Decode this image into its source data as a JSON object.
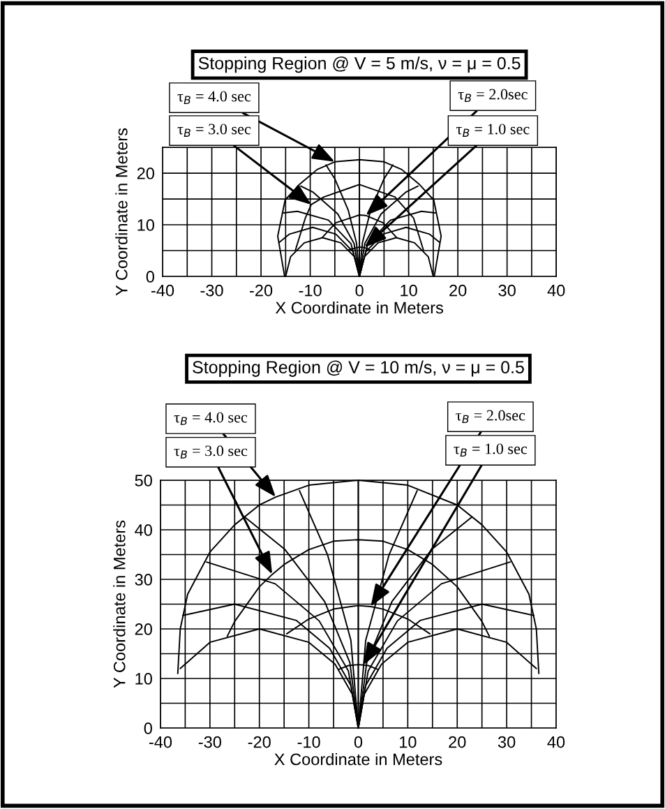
{
  "chart_data": [
    {
      "type": "line",
      "title": "Stopping Region @ V = 5 m/s, ν = μ = 0.5",
      "xlabel": "X Coordinate in Meters",
      "ylabel": "Y Coordinate in Meters",
      "xlim": [
        -40,
        40
      ],
      "ylim": [
        0,
        25
      ],
      "xticks": [
        -40,
        {
          "value": -35,
          "label": null
        },
        -30,
        {
          "value": -25,
          "label": null
        },
        -20,
        {
          "value": -15,
          "label": null
        },
        -10,
        {
          "value": -5,
          "label": null
        },
        0,
        {
          "value": 5,
          "label": null
        },
        10,
        {
          "value": 15,
          "label": null
        },
        20,
        {
          "value": 25,
          "label": null
        },
        30,
        {
          "value": 35,
          "label": null
        },
        40
      ],
      "yticks": [
        0,
        {
          "value": 5,
          "label": null
        },
        10,
        {
          "value": 15,
          "label": null
        },
        20,
        {
          "value": 25,
          "label": null
        }
      ],
      "grid": true,
      "annotations": [
        {
          "text": "τ$_{B}$ = 4.0 sec",
          "x": -5,
          "y": 22.2
        },
        {
          "text": "τ$_{B}$ = 3.0 sec",
          "x": -9.8,
          "y": 13.9
        },
        {
          "text": "τ$_{B}$ = 2.0sec",
          "x": 1.3,
          "y": 11.8
        },
        {
          "text": "τ$_{B}$ = 1.0 sec",
          "x": 1.0,
          "y": 5.6
        }
      ],
      "series": [
        {
          "color": "#000000",
          "x": [
            -15.2,
            -16.6,
            -15.1,
            -12.2,
            -8.6,
            -5,
            0,
            5,
            8.6,
            12.2,
            15.1,
            16.6,
            15.2
          ],
          "values": [
            0,
            7.8,
            14.8,
            17.8,
            20.7,
            22.2,
            22.6,
            22.2,
            20.7,
            17.8,
            14.8,
            7.8,
            0
          ]
        },
        {
          "color": "#000000",
          "x": [
            -13,
            -11,
            -9.8,
            -7.2,
            0,
            7.2,
            11,
            13
          ],
          "values": [
            5.1,
            11.3,
            13.9,
            15.4,
            17.8,
            15.4,
            11.3,
            5.1
          ]
        },
        {
          "color": "#000000",
          "x": [
            -7.5,
            -4.8,
            0,
            1.3,
            4.8,
            7.5
          ],
          "values": [
            7.6,
            10.4,
            11.9,
            11.8,
            10.4,
            7.6
          ]
        },
        {
          "color": "#000000",
          "x": [
            -2.3,
            0,
            1.0,
            2.3
          ],
          "values": [
            5.1,
            5.7,
            5.6,
            5.1
          ]
        },
        {
          "color": "#000000",
          "x": [
            0,
            -1.0,
            -3.8,
            -7.5,
            -11.2,
            -14,
            -15
          ],
          "values": [
            0,
            3.8,
            6.5,
            7.5,
            6.5,
            3.8,
            0
          ]
        },
        {
          "color": "#000000",
          "x": [
            0,
            -1.3,
            -4.8,
            -9.5,
            -14.2,
            -16.3
          ],
          "values": [
            0,
            4.8,
            8.2,
            9.5,
            8.2,
            6.6
          ]
        },
        {
          "color": "#000000",
          "x": [
            0,
            -1.7,
            -6.3,
            -12.6,
            -15.4
          ],
          "values": [
            0,
            6.3,
            10.9,
            12.6,
            12.3
          ]
        },
        {
          "color": "#000000",
          "x": [
            0,
            -1.1,
            -4.4,
            -9.4,
            -11.9
          ],
          "values": [
            0,
            6.4,
            12.1,
            16.3,
            17.5
          ]
        },
        {
          "color": "#000000",
          "x": [
            0,
            -0.6,
            -2.3,
            -5.0,
            -6.8
          ],
          "values": [
            0,
            6.5,
            12.9,
            18.9,
            21.6
          ]
        },
        {
          "color": "#000000",
          "x": [
            0,
            0
          ],
          "values": [
            0,
            22.6
          ]
        },
        {
          "color": "#000000",
          "x": [
            0,
            0.6,
            2.3,
            5.0,
            6.8
          ],
          "values": [
            0,
            6.5,
            12.9,
            18.9,
            21.6
          ]
        },
        {
          "color": "#000000",
          "x": [
            0,
            1.1,
            4.4,
            9.4,
            11.9
          ],
          "values": [
            0,
            6.4,
            12.1,
            16.3,
            17.5
          ]
        },
        {
          "color": "#000000",
          "x": [
            0,
            1.7,
            6.3,
            12.6,
            15.4
          ],
          "values": [
            0,
            6.3,
            10.9,
            12.6,
            12.3
          ]
        },
        {
          "color": "#000000",
          "x": [
            0,
            1.3,
            4.8,
            9.5,
            14.2,
            16.3
          ],
          "values": [
            0,
            4.8,
            8.2,
            9.5,
            8.2,
            6.6
          ]
        },
        {
          "color": "#000000",
          "x": [
            0,
            1.0,
            3.8,
            7.5,
            11.2,
            14,
            15
          ],
          "values": [
            0,
            3.8,
            6.5,
            7.5,
            6.5,
            3.8,
            0
          ]
        }
      ]
    },
    {
      "type": "line",
      "title": "Stopping Region @ V = 10 m/s, ν = μ = 0.5",
      "xlabel": "X Coordinate in Meters",
      "ylabel": "Y Coordinate in Meters",
      "xlim": [
        -40,
        40
      ],
      "ylim": [
        0,
        50
      ],
      "xticks": [
        -40,
        {
          "value": -35,
          "label": null
        },
        -30,
        {
          "value": -25,
          "label": null
        },
        -20,
        {
          "value": -15,
          "label": null
        },
        -10,
        {
          "value": -5,
          "label": null
        },
        0,
        {
          "value": 5,
          "label": null
        },
        10,
        {
          "value": 15,
          "label": null
        },
        20,
        {
          "value": 25,
          "label": null
        },
        30,
        {
          "value": 35,
          "label": null
        },
        40
      ],
      "yticks": [
        0,
        {
          "value": 5,
          "label": null
        },
        10,
        {
          "value": 15,
          "label": null
        },
        20,
        {
          "value": 25,
          "label": null
        },
        30,
        {
          "value": 35,
          "label": null
        },
        40,
        {
          "value": 45,
          "label": null
        },
        50
      ],
      "grid": true,
      "annotations": [
        {
          "text": "τ$_{B}$ = 4.0 sec",
          "x": -16.7,
          "y": 46.6
        },
        {
          "text": "τ$_{B}$ = 3.0 sec",
          "x": -17.4,
          "y": 31
        },
        {
          "text": "τ$_{B}$ = 2.0sec",
          "x": 2.5,
          "y": 24.5
        },
        {
          "text": "τ$_{B}$ = 1.0 sec",
          "x": 1.0,
          "y": 12.7
        }
      ],
      "series": [
        {
          "color": "#000000",
          "x": [
            -36.5,
            -36,
            -34.5,
            -30,
            -25,
            -20,
            -16.7,
            -10,
            0,
            10,
            20,
            25,
            30,
            34.5,
            36,
            36.5
          ],
          "values": [
            11,
            20,
            27,
            35.5,
            41,
            45,
            46.6,
            49,
            50,
            49,
            45,
            41,
            35.5,
            27,
            20,
            11
          ]
        },
        {
          "color": "#000000",
          "x": [
            -26.5,
            -25,
            -20,
            -17.4,
            -15,
            -10,
            -5,
            0,
            5,
            10,
            15,
            20,
            25,
            26.5
          ],
          "values": [
            18.5,
            21.5,
            28.5,
            31,
            33,
            36,
            37.7,
            38,
            37.7,
            36,
            33,
            28.5,
            21.5,
            18.5
          ]
        },
        {
          "color": "#000000",
          "x": [
            -14.5,
            -10,
            -5,
            0,
            2.5,
            5,
            10,
            14.5
          ],
          "values": [
            19,
            22,
            24,
            24.7,
            24.5,
            24,
            22,
            19
          ]
        },
        {
          "color": "#000000",
          "x": [
            -4,
            -2,
            0,
            1.0,
            2,
            4
          ],
          "values": [
            11.8,
            12.6,
            12.8,
            12.7,
            12.6,
            11.8
          ]
        },
        {
          "color": "#000000",
          "x": [
            0,
            -1.2,
            -4.7,
            -10,
            -20,
            -30,
            -36
          ],
          "values": [
            0,
            6.8,
            12.9,
            17.3,
            20,
            17.3,
            12
          ]
        },
        {
          "color": "#000000",
          "x": [
            0,
            -1.5,
            -5.8,
            -12.5,
            -25,
            -35.5
          ],
          "values": [
            0,
            8.6,
            16.1,
            21.7,
            25,
            22.7
          ]
        },
        {
          "color": "#000000",
          "x": [
            0,
            -2,
            -7.9,
            -16.8,
            -30.7
          ],
          "values": [
            0,
            11.5,
            21.6,
            29.1,
            33.5
          ]
        },
        {
          "color": "#000000",
          "x": [
            0,
            -1.7,
            -6.8,
            -14.9,
            -23
          ],
          "values": [
            0,
            13.2,
            25.5,
            36.1,
            42.6
          ]
        },
        {
          "color": "#000000",
          "x": [
            0,
            -1.5,
            -6.2,
            -11.9
          ],
          "values": [
            0,
            17.7,
            34.9,
            47.9
          ]
        },
        {
          "color": "#000000",
          "x": [
            0,
            0
          ],
          "values": [
            0,
            50
          ]
        },
        {
          "color": "#000000",
          "x": [
            0,
            1.5,
            6.2,
            11.9
          ],
          "values": [
            0,
            17.7,
            34.9,
            47.9
          ]
        },
        {
          "color": "#000000",
          "x": [
            0,
            1.7,
            6.8,
            14.9,
            23
          ],
          "values": [
            0,
            13.2,
            25.5,
            36.1,
            42.6
          ]
        },
        {
          "color": "#000000",
          "x": [
            0,
            2,
            7.9,
            16.8,
            30.7
          ],
          "values": [
            0,
            11.5,
            21.6,
            29.1,
            33.5
          ]
        },
        {
          "color": "#000000",
          "x": [
            0,
            1.5,
            5.8,
            12.5,
            25,
            35.5
          ],
          "values": [
            0,
            8.6,
            16.1,
            21.7,
            25,
            22.7
          ]
        },
        {
          "color": "#000000",
          "x": [
            0,
            1.2,
            4.7,
            10,
            20,
            30,
            36
          ],
          "values": [
            0,
            6.8,
            12.9,
            17.3,
            20,
            17.3,
            12
          ]
        }
      ]
    }
  ]
}
